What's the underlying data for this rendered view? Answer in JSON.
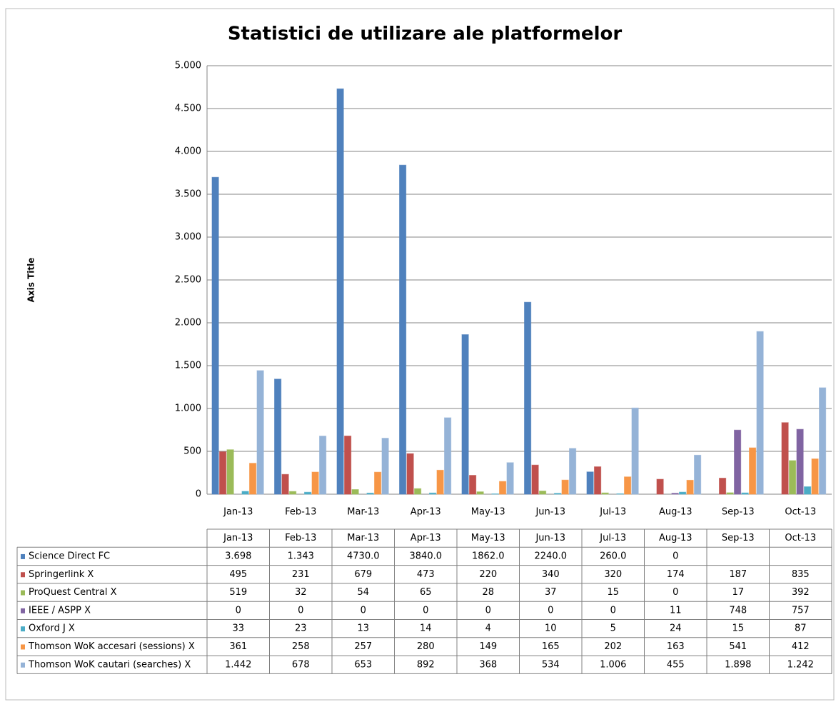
{
  "chart_data": {
    "type": "bar",
    "title": "Statistici de utilizare ale platformelor",
    "y_axis_label": "Axis Title",
    "categories": [
      "Jan-13",
      "Feb-13",
      "Mar-13",
      "Apr-13",
      "May-13",
      "Jun-13",
      "Jul-13",
      "Aug-13",
      "Sep-13",
      "Oct-13"
    ],
    "ylim": [
      0,
      5000
    ],
    "yticks": [
      0,
      500,
      {
        "value": 1000,
        "label": "1.000"
      },
      {
        "value": 1500,
        "label": "1.500"
      },
      {
        "value": 2000,
        "label": "2.000"
      },
      {
        "value": 2500,
        "label": "2.500"
      },
      {
        "value": 3000,
        "label": "3.000"
      },
      {
        "value": 3500,
        "label": "3.500"
      },
      {
        "value": 4000,
        "label": "4.000"
      },
      {
        "value": 4500,
        "label": "4.500"
      },
      {
        "value": 5000,
        "label": "5.000"
      }
    ],
    "grid": true,
    "series": [
      {
        "name": "Science Direct FC",
        "color": "#4f81bd",
        "values": [
          3698,
          1343,
          4730,
          3840,
          1862,
          2240,
          260,
          0,
          null,
          null
        ],
        "value_labels": [
          "3.698",
          "1.343",
          "4730.0",
          "3840.0",
          "1862.0",
          "2240.0",
          "260.0",
          "0",
          null,
          null
        ]
      },
      {
        "name": "Springerlink X",
        "color": "#c0504d",
        "values": [
          495,
          231,
          679,
          473,
          220,
          340,
          320,
          174,
          187,
          835
        ]
      },
      {
        "name": "ProQuest Central X",
        "color": "#9bbb59",
        "values": [
          519,
          32,
          54,
          65,
          28,
          37,
          15,
          0,
          17,
          392
        ]
      },
      {
        "name": "IEEE / ASPP X",
        "color": "#8064a2",
        "values": [
          0,
          0,
          0,
          0,
          0,
          0,
          0,
          11,
          748,
          757
        ]
      },
      {
        "name": "Oxford J X",
        "color": "#4bacc6",
        "values": [
          33,
          23,
          13,
          14,
          4,
          10,
          5,
          24,
          15,
          87
        ]
      },
      {
        "name": "Thomson WoK accesari (sessions) X",
        "color": "#f79646",
        "values": [
          361,
          258,
          257,
          280,
          149,
          165,
          202,
          163,
          541,
          412
        ]
      },
      {
        "name": "Thomson WoK cautari (searches) X",
        "color": "#95b3d7",
        "values": [
          1442,
          678,
          653,
          892,
          368,
          534,
          1006,
          455,
          1898,
          1242
        ],
        "value_labels": [
          "1.442",
          "678",
          "653",
          "892",
          "368",
          "534",
          "1.006",
          "455",
          "1.898",
          "1.242"
        ]
      }
    ]
  }
}
